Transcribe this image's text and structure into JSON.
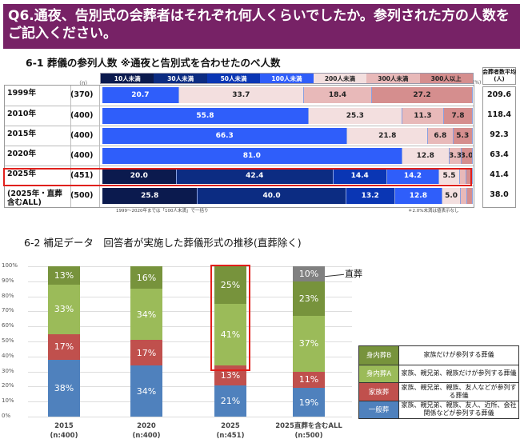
{
  "header": {
    "title": "Q6.通夜、告別式の会葬者はそれぞれ何人くらいでしたか。参列された方の人数をご記入ください。"
  },
  "chart_data": [
    {
      "type": "bar",
      "orientation": "horizontal-stacked-100",
      "title": "6-1 葬儀の参列人数 ※通夜と告別式を合わせたのべ人数",
      "n_label": "（n）",
      "unit_label": "(%)",
      "avg_header": "会葬者数平均(人)",
      "legend": [
        {
          "name": "10人未満",
          "color": "#0b1a4e"
        },
        {
          "name": "30人未満",
          "color": "#0c2c82"
        },
        {
          "name": "50人未満",
          "color": "#0a36b4"
        },
        {
          "name": "100人未満",
          "color": "#2f5efa"
        },
        {
          "name": "200人未満",
          "color": "#f3dfdf"
        },
        {
          "name": "300人未満",
          "color": "#e8b9b9"
        },
        {
          "name": "300人以上",
          "color": "#d58e8e"
        }
      ],
      "rows": [
        {
          "label": "1999年",
          "n": "(370)",
          "avg": "209.6",
          "values": [
            null,
            null,
            null,
            20.7,
            33.7,
            18.4,
            27.2
          ]
        },
        {
          "label": "2010年",
          "n": "(400)",
          "avg": "118.4",
          "values": [
            null,
            null,
            null,
            55.8,
            25.3,
            11.3,
            7.8
          ]
        },
        {
          "label": "2015年",
          "n": "(400)",
          "avg": "92.3",
          "values": [
            null,
            null,
            null,
            66.3,
            21.8,
            6.8,
            5.3
          ]
        },
        {
          "label": "2020年",
          "n": "(400)",
          "avg": "63.4",
          "values": [
            null,
            null,
            null,
            81.0,
            12.8,
            3.3,
            3.0
          ]
        },
        {
          "label": "2025年",
          "n": "(451)",
          "avg": "41.4",
          "highlight": true,
          "values": [
            20.0,
            42.4,
            14.4,
            14.2,
            5.5,
            1.8,
            1.7
          ]
        },
        {
          "label": "(2025年・直葬含むALL)",
          "n": "(500)",
          "avg": "38.0",
          "values": [
            25.8,
            40.0,
            13.2,
            12.8,
            5.0,
            1.6,
            1.6
          ]
        }
      ],
      "note_left": "1999～2020年までは「100人未満」で一括り",
      "note_right": "＊2.0%未満は値表示なし"
    },
    {
      "type": "bar",
      "orientation": "vertical-stacked",
      "title": "6-2 補足データ　回答者が実施した葬儀形式の推移(直葬除く)",
      "yticks": [
        "0%",
        "10%",
        "20%",
        "30%",
        "40%",
        "50%",
        "60%",
        "70%",
        "80%",
        "90%",
        "100%"
      ],
      "ylim": [
        0,
        100
      ],
      "grid": true,
      "categories": [
        {
          "label": "2015",
          "n": "(n:400)"
        },
        {
          "label": "2020",
          "n": "(n:400)"
        },
        {
          "label": "2025",
          "n": "(n:451)",
          "highlight": true
        },
        {
          "label": "2025直葬を含むALL",
          "n": "(n:500)"
        }
      ],
      "series": [
        {
          "name": "一般葬",
          "desc": "家族、親兄弟、親族、友人、近所、会社関係などが参列する葬儀",
          "color": "#4f81bd",
          "values": [
            38,
            34,
            21,
            19
          ]
        },
        {
          "name": "家族葬",
          "desc": "家族、親兄弟、親族、友人などが参列する葬儀",
          "color": "#c0504d",
          "values": [
            17,
            17,
            13,
            11
          ]
        },
        {
          "name": "身内葬A",
          "desc": "家族、親兄弟、親族だけが参列する葬儀",
          "color": "#9bbb59",
          "values": [
            33,
            34,
            41,
            37
          ]
        },
        {
          "name": "身内葬B",
          "desc": "家族だけが参列する葬儀",
          "color": "#77933c",
          "values": [
            13,
            16,
            25,
            23
          ]
        },
        {
          "name": "直葬",
          "color": "#808080",
          "values": [
            null,
            null,
            null,
            10
          ]
        }
      ],
      "callout": "直葬"
    }
  ]
}
